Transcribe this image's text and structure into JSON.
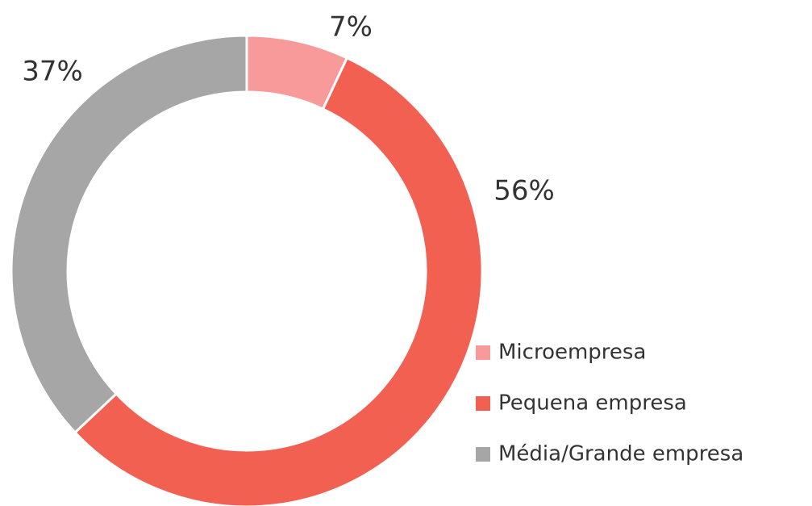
{
  "chart_data": {
    "type": "donut",
    "categories": [
      "Microempresa",
      "Pequena empresa",
      "Média/Grande empresa"
    ],
    "values": [
      7,
      56,
      37
    ],
    "value_labels": [
      "7%",
      "56%",
      "37%"
    ],
    "colors": [
      "#f89a9a",
      "#f26052",
      "#a6a6a6"
    ],
    "legend": "bottom-right"
  }
}
